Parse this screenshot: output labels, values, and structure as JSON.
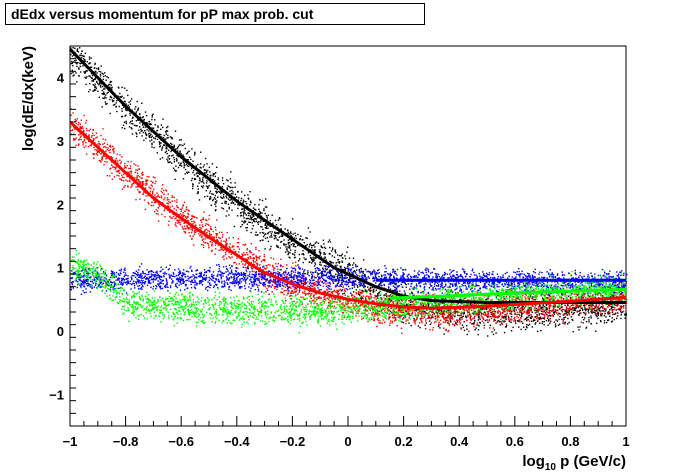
{
  "chart_data": {
    "type": "scatter",
    "title": "dEdx versus momentum for pP max prob. cut",
    "xlabel_main": "log",
    "xlabel_sub": "10",
    "xlabel_rest": " p (GeV/c)",
    "ylabel": "log(dE/dx(keV)",
    "xlim": [
      -1,
      1
    ],
    "ylim": [
      -1.5,
      4.5
    ],
    "x_ticks": [
      "−1",
      "−0.8",
      "−0.6",
      "−0.4",
      "−0.2",
      "0",
      "0.2",
      "0.4",
      "0.6",
      "0.8",
      "1"
    ],
    "x_tick_values": [
      -1,
      -0.8,
      -0.6,
      -0.4,
      -0.2,
      0,
      0.2,
      0.4,
      0.6,
      0.8,
      1
    ],
    "y_ticks": [
      "−1",
      "0",
      "1",
      "2",
      "3",
      "4"
    ],
    "y_tick_values": [
      -1,
      0,
      1,
      2,
      3,
      4
    ],
    "grid": false,
    "series": [
      {
        "color": "#000000",
        "band_center": [
          [
            -1.0,
            4.4
          ],
          [
            -0.8,
            3.5
          ],
          [
            -0.6,
            2.7
          ],
          [
            -0.4,
            2.0
          ],
          [
            -0.2,
            1.4
          ],
          [
            0.0,
            0.9
          ],
          [
            0.1,
            0.65
          ],
          [
            0.2,
            0.45
          ],
          [
            0.4,
            0.3
          ],
          [
            0.6,
            0.32
          ],
          [
            0.8,
            0.37
          ],
          [
            1.0,
            0.42
          ]
        ],
        "band_spread": 0.3,
        "curve": [
          [
            -1.0,
            4.45
          ],
          [
            -0.8,
            3.55
          ],
          [
            -0.6,
            2.75
          ],
          [
            -0.4,
            2.05
          ],
          [
            -0.2,
            1.45
          ],
          [
            -0.05,
            1.0
          ],
          [
            0.1,
            0.7
          ],
          [
            0.2,
            0.55
          ],
          [
            0.3,
            0.48
          ],
          [
            0.5,
            0.45
          ],
          [
            0.8,
            0.45
          ],
          [
            1.0,
            0.45
          ]
        ]
      },
      {
        "color": "#ff0000",
        "band_center": [
          [
            -1.0,
            3.3
          ],
          [
            -0.8,
            2.5
          ],
          [
            -0.6,
            1.8
          ],
          [
            -0.4,
            1.25
          ],
          [
            -0.3,
            0.95
          ],
          [
            -0.2,
            0.75
          ],
          [
            0.0,
            0.5
          ],
          [
            0.2,
            0.3
          ],
          [
            0.4,
            0.3
          ],
          [
            0.6,
            0.38
          ],
          [
            0.8,
            0.44
          ],
          [
            1.0,
            0.5
          ]
        ],
        "band_spread": 0.25,
        "curve": [
          [
            -1.0,
            3.3
          ],
          [
            -0.9,
            2.9
          ],
          [
            -0.8,
            2.5
          ],
          [
            -0.7,
            2.1
          ],
          [
            -0.6,
            1.78
          ],
          [
            -0.5,
            1.48
          ],
          [
            -0.4,
            1.2
          ],
          [
            -0.35,
            1.05
          ],
          [
            -0.3,
            0.92
          ],
          [
            -0.2,
            0.74
          ],
          [
            -0.1,
            0.6
          ],
          [
            0.0,
            0.5
          ],
          [
            0.1,
            0.43
          ],
          [
            0.2,
            0.38
          ],
          [
            0.3,
            0.36
          ],
          [
            0.45,
            0.38
          ],
          [
            0.6,
            0.42
          ],
          [
            0.8,
            0.47
          ],
          [
            1.0,
            0.53
          ]
        ]
      },
      {
        "color": "#0000ff",
        "band_center": [
          [
            -1.0,
            0.8
          ],
          [
            -0.6,
            0.85
          ],
          [
            -0.3,
            0.85
          ],
          [
            0.0,
            0.85
          ],
          [
            0.2,
            0.82
          ],
          [
            0.4,
            0.8
          ],
          [
            0.6,
            0.78
          ],
          [
            0.8,
            0.78
          ],
          [
            1.0,
            0.78
          ]
        ],
        "band_spread": 0.18,
        "curve": [
          [
            0.1,
            0.8
          ],
          [
            1.0,
            0.8
          ]
        ]
      },
      {
        "color": "#00ff00",
        "band_center": [
          [
            -1.0,
            1.05
          ],
          [
            -0.9,
            0.9
          ],
          [
            -0.8,
            0.45
          ],
          [
            -0.6,
            0.38
          ],
          [
            -0.4,
            0.35
          ],
          [
            -0.2,
            0.33
          ],
          [
            0.0,
            0.35
          ],
          [
            0.2,
            0.42
          ],
          [
            0.4,
            0.5
          ],
          [
            0.6,
            0.58
          ],
          [
            0.8,
            0.62
          ],
          [
            1.0,
            0.65
          ]
        ],
        "band_spread": 0.22,
        "curve": [
          [
            0.15,
            0.52
          ],
          [
            0.4,
            0.56
          ],
          [
            0.6,
            0.6
          ],
          [
            0.8,
            0.63
          ],
          [
            1.0,
            0.66
          ]
        ]
      }
    ]
  }
}
